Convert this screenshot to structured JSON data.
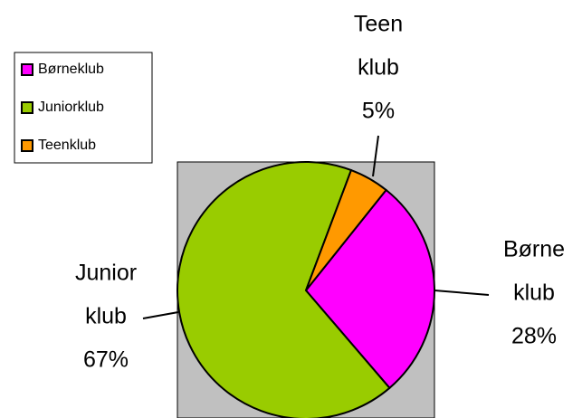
{
  "chart_data": {
    "type": "pie",
    "categories": [
      "Børneklub",
      "Juniorklub",
      "Teenklub"
    ],
    "values": [
      28,
      67,
      5
    ],
    "value_labels": [
      "28%",
      "67%",
      "5%"
    ],
    "label_lines": [
      [
        "Børne",
        "klub"
      ],
      [
        "Junior",
        "klub"
      ],
      [
        "Teen",
        "klub"
      ]
    ],
    "colors": [
      "#ff00ff",
      "#99cc00",
      "#ff9900"
    ],
    "plot_background": "#c0c0c0",
    "legend": "left"
  }
}
